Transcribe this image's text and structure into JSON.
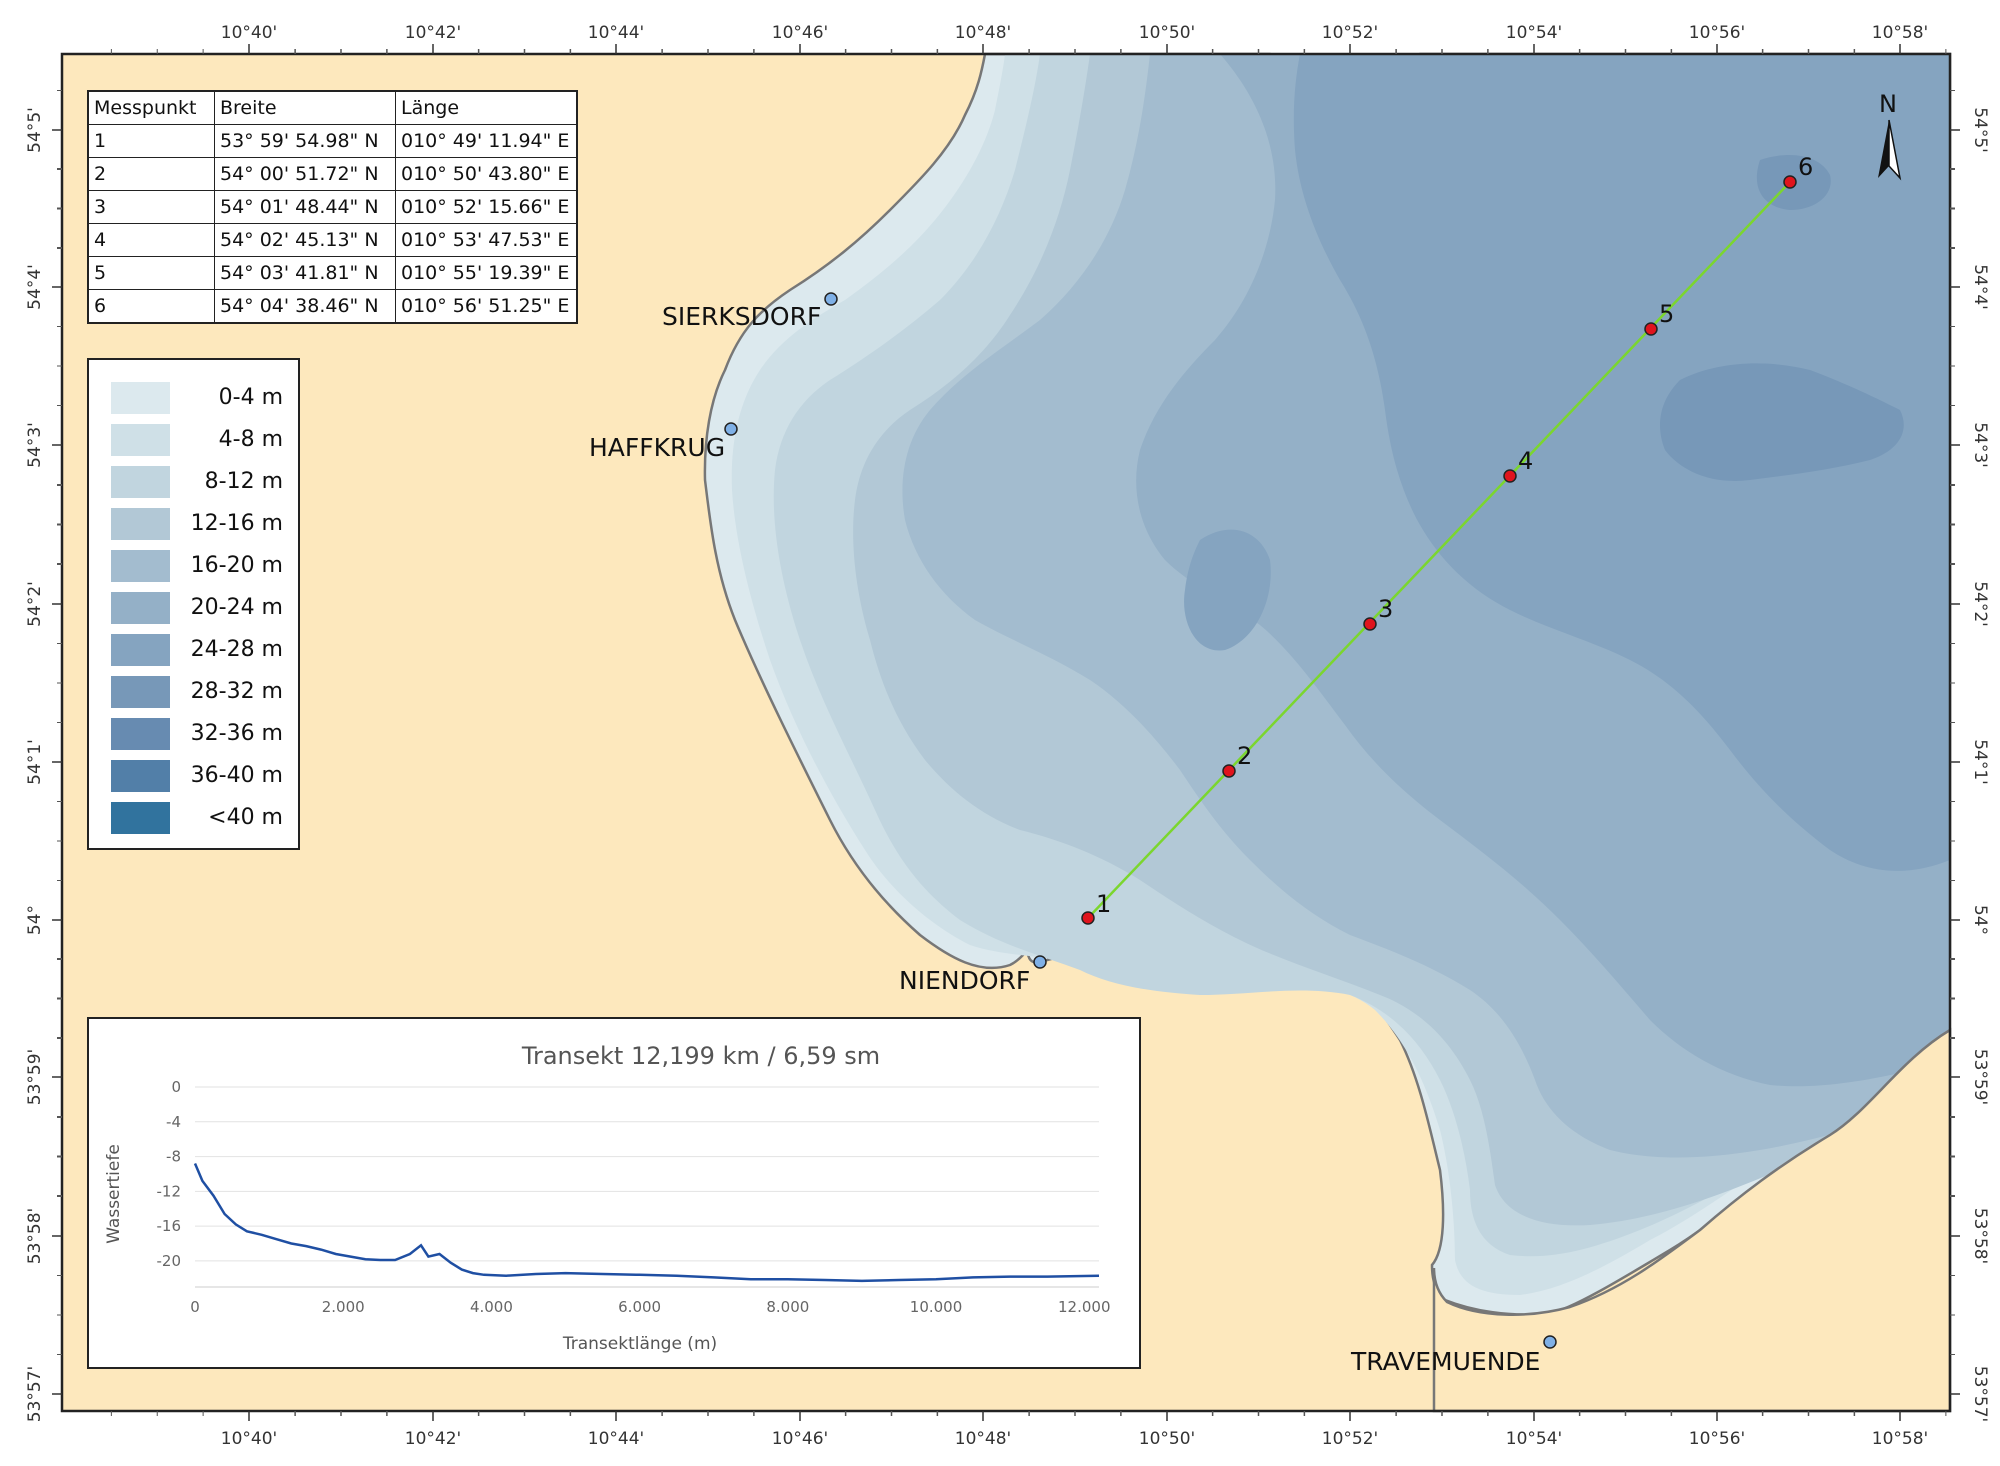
{
  "map": {
    "colors": {
      "land": "#fde8bd",
      "coastline": "#777777",
      "transect_line": "#7bd62e",
      "measure_point": "#e0141d",
      "place_point": "#7fb0e6"
    },
    "lon_ticks": [
      "10°40'",
      "10°42'",
      "10°44'",
      "10°46'",
      "10°48'",
      "10°50'",
      "10°52'",
      "10°54'",
      "10°56'",
      "10°58'"
    ],
    "lat_ticks": [
      "54°5'",
      "54°4'",
      "54°3'",
      "54°2'",
      "54°1'",
      "54°",
      "53°59'",
      "53°58'",
      "53°57'"
    ],
    "places": [
      {
        "name": "SIERKSDORF",
        "lon": "10°46.4'",
        "lat": "54°3.9'"
      },
      {
        "name": "HAFFKRUG",
        "lon": "10°45.3'",
        "lat": "54°3.1'"
      },
      {
        "name": "NIENDORF",
        "lon": "10°48.7'",
        "lat": "53°59.7'"
      },
      {
        "name": "TRAVEMUENDE",
        "lon": "10°54.2'",
        "lat": "53°57.1'"
      }
    ],
    "north_arrow": {
      "label": "N",
      "icon": "north-arrow-icon"
    }
  },
  "coord_table": {
    "headers": [
      "Messpunkt",
      "Breite",
      "Länge"
    ],
    "rows": [
      [
        "1",
        "53° 59' 54.98\" N",
        "010° 49' 11.94\" E"
      ],
      [
        "2",
        "54° 00' 51.72\" N",
        "010° 50' 43.80\" E"
      ],
      [
        "3",
        "54° 01' 48.44\" N",
        "010° 52' 15.66\" E"
      ],
      [
        "4",
        "54° 02' 45.13\" N",
        "010° 53' 47.53\" E"
      ],
      [
        "5",
        "54° 03' 41.81\" N",
        "010° 55' 19.39\" E"
      ],
      [
        "6",
        "54° 04' 38.46\" N",
        "010° 56' 51.25\" E"
      ]
    ]
  },
  "depth_legend": [
    {
      "label": "0-4 m",
      "color": "#dce9ee"
    },
    {
      "label": "4-8 m",
      "color": "#cfe0e7"
    },
    {
      "label": "8-12 m",
      "color": "#c1d5df"
    },
    {
      "label": "12-16 m",
      "color": "#b2c8d6"
    },
    {
      "label": "16-20 m",
      "color": "#a3bccf"
    },
    {
      "label": "20-24 m",
      "color": "#94b0c7"
    },
    {
      "label": "24-28 m",
      "color": "#85a4c0"
    },
    {
      "label": "28-32 m",
      "color": "#7798b8"
    },
    {
      "label": "32-36 m",
      "color": "#678bb1"
    },
    {
      "label": "36-40 m",
      "color": "#527fa8"
    },
    {
      "label": "<40 m",
      "color": "#31739e"
    }
  ],
  "chart_data": {
    "type": "line",
    "title": "Transekt 12,199 km / 6,59 sm",
    "xlabel": "Transektlänge (m)",
    "ylabel": "Wassertiefe",
    "xlim": [
      0,
      12199
    ],
    "ylim": [
      -23,
      0
    ],
    "x_ticks": [
      0,
      2000,
      4000,
      6000,
      8000,
      10000,
      12000
    ],
    "x_tick_labels": [
      "0",
      "2.000",
      "4.000",
      "6.000",
      "8.000",
      "10.000",
      "12.000"
    ],
    "y_ticks": [
      0,
      -4,
      -8,
      -12,
      -16,
      -20
    ],
    "y_tick_labels": [
      "0",
      "-4",
      "-8",
      "-12",
      "-16",
      "-20"
    ],
    "grid": true,
    "color": "#1f4fa3",
    "series": [
      {
        "x": [
          0,
          100,
          250,
          400,
          550,
          700,
          900,
          1100,
          1300,
          1500,
          1700,
          1900,
          2100,
          2300,
          2500,
          2700,
          2900,
          3050,
          3150,
          3300,
          3450,
          3600,
          3750,
          3900,
          4200,
          4600,
          5000,
          5500,
          6000,
          6500,
          7000,
          7500,
          8000,
          8500,
          9000,
          9500,
          10000,
          10500,
          11000,
          11500,
          12199
        ],
        "y": [
          -8.8,
          -10.8,
          -12.5,
          -14.6,
          -15.8,
          -16.6,
          -17,
          -17.5,
          -18,
          -18.3,
          -18.7,
          -19.2,
          -19.5,
          -19.8,
          -19.9,
          -19.9,
          -19.2,
          -18.2,
          -19.5,
          -19.2,
          -20.2,
          -21,
          -21.4,
          -21.6,
          -21.7,
          -21.5,
          -21.4,
          -21.5,
          -21.6,
          -21.7,
          -21.9,
          -22.1,
          -22.1,
          -22.2,
          -22.3,
          -22.2,
          -22.1,
          -21.9,
          -21.8,
          -21.8,
          -21.7
        ]
      }
    ]
  }
}
